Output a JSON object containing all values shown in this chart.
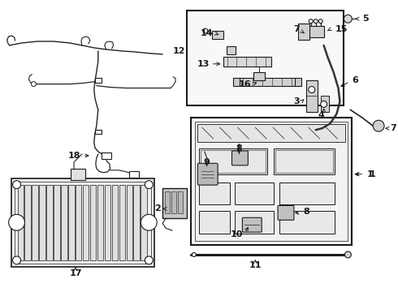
{
  "bg_color": "#ffffff",
  "line_color": "#1a1a1a",
  "fig_width": 4.9,
  "fig_height": 3.6,
  "dpi": 100,
  "harness_color": "#222222",
  "part_color": "#555555",
  "panel_fill": "#f2f2f2",
  "inset_fill": "#f8f8f8"
}
